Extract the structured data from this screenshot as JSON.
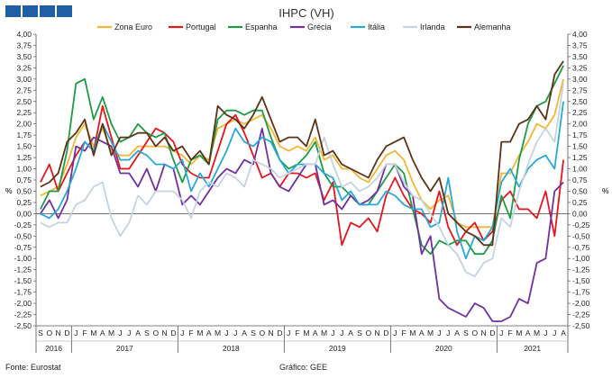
{
  "chart_data": {
    "type": "line",
    "title": "IHPC (VH)",
    "ylabel_left": "%",
    "ylabel_right": "%",
    "ylim": [
      -2.5,
      4.0
    ],
    "ytick_step": 0.25,
    "month_letters": [
      "S",
      "O",
      "N",
      "D",
      "J",
      "F",
      "M",
      "A",
      "M",
      "J",
      "J",
      "A",
      "S",
      "O",
      "N",
      "D",
      "J",
      "F",
      "M",
      "A",
      "M",
      "J",
      "J",
      "A",
      "S",
      "O",
      "N",
      "D",
      "J",
      "F",
      "M",
      "A",
      "M",
      "J",
      "J",
      "A",
      "S",
      "O",
      "N",
      "D",
      "J",
      "F",
      "M",
      "A",
      "M",
      "J",
      "J",
      "A",
      "S",
      "O",
      "N",
      "D",
      "J",
      "F",
      "M",
      "A",
      "M",
      "J",
      "J",
      "A"
    ],
    "year_groups": [
      {
        "label": "2016",
        "count": 4
      },
      {
        "label": "2017",
        "count": 12
      },
      {
        "label": "2018",
        "count": 12
      },
      {
        "label": "2019",
        "count": 12
      },
      {
        "label": "2020",
        "count": 12
      },
      {
        "label": "2021",
        "count": 8
      }
    ],
    "series": [
      {
        "name": "Zona Euro",
        "color": "#f2b632",
        "values": [
          0.4,
          0.5,
          0.6,
          1.1,
          1.7,
          2.0,
          1.5,
          1.9,
          1.4,
          1.3,
          1.3,
          1.5,
          1.5,
          1.5,
          1.5,
          1.4,
          1.3,
          1.1,
          1.3,
          1.2,
          1.9,
          2.0,
          2.1,
          2.0,
          2.1,
          2.2,
          1.9,
          1.5,
          1.4,
          1.5,
          1.4,
          1.7,
          1.2,
          1.3,
          1.0,
          1.0,
          0.8,
          0.7,
          1.0,
          1.3,
          1.4,
          1.2,
          0.7,
          0.3,
          0.1,
          0.3,
          0.4,
          -0.2,
          -0.3,
          -0.3,
          -0.3,
          -0.3,
          0.9,
          0.9,
          1.3,
          1.6,
          2.0,
          1.9,
          2.2,
          3.0
        ]
      },
      {
        "name": "Portugal",
        "color": "#e8141b",
        "values": [
          0.7,
          1.1,
          0.5,
          0.9,
          1.3,
          1.6,
          1.4,
          2.4,
          1.7,
          1.0,
          1.0,
          1.3,
          1.6,
          1.9,
          1.8,
          1.6,
          1.1,
          0.9,
          0.8,
          0.8,
          1.4,
          2.0,
          2.2,
          1.8,
          1.3,
          0.8,
          0.9,
          0.6,
          0.9,
          0.9,
          0.8,
          0.9,
          0.3,
          0.7,
          -0.7,
          -0.2,
          -0.3,
          -0.1,
          -0.4,
          0.4,
          0.8,
          0.4,
          0.1,
          0.0,
          -0.2,
          0.5,
          -0.3,
          -0.7,
          -0.4,
          -0.2,
          -0.6,
          -0.4,
          0.3,
          0.5,
          0.1,
          0.1,
          -0.1,
          0.5,
          -0.5,
          1.2
        ]
      },
      {
        "name": "Espanha",
        "color": "#1e9b47",
        "values": [
          0.1,
          0.5,
          0.5,
          1.4,
          2.9,
          3.0,
          2.1,
          2.6,
          2.0,
          1.6,
          1.7,
          2.0,
          1.8,
          1.7,
          1.8,
          1.2,
          0.7,
          1.2,
          1.3,
          1.1,
          2.1,
          2.3,
          2.3,
          2.2,
          2.3,
          2.3,
          1.7,
          1.2,
          1.0,
          1.1,
          1.3,
          1.6,
          0.9,
          0.6,
          0.6,
          0.4,
          0.2,
          0.2,
          0.5,
          0.8,
          1.1,
          0.9,
          0.1,
          -0.7,
          -0.9,
          -0.6,
          -0.7,
          -0.6,
          -0.6,
          -0.9,
          -0.9,
          -0.6,
          0.4,
          -0.1,
          1.2,
          2.0,
          2.4,
          2.5,
          2.9,
          3.3
        ]
      },
      {
        "name": "Grécia",
        "color": "#7030a0",
        "values": [
          0.0,
          0.3,
          -0.1,
          0.3,
          1.5,
          1.4,
          1.7,
          1.6,
          1.5,
          0.9,
          0.9,
          0.6,
          1.0,
          0.5,
          1.1,
          1.0,
          0.2,
          0.4,
          0.2,
          0.5,
          0.8,
          1.0,
          0.9,
          1.2,
          1.1,
          1.9,
          0.9,
          0.6,
          0.5,
          0.8,
          1.1,
          1.1,
          0.2,
          0.3,
          0.1,
          0.4,
          0.2,
          0.3,
          0.5,
          1.1,
          1.1,
          0.6,
          0.4,
          -0.9,
          -0.5,
          -1.9,
          -2.1,
          -2.2,
          -2.3,
          -2.0,
          -2.1,
          -2.4,
          -2.4,
          -2.3,
          -1.9,
          -2.0,
          -1.1,
          -1.0,
          0.5,
          0.7
        ]
      },
      {
        "name": "Itália",
        "color": "#29a8d8",
        "values": [
          0.0,
          -0.1,
          0.1,
          0.5,
          1.0,
          1.6,
          1.4,
          2.0,
          1.6,
          1.2,
          1.2,
          1.4,
          1.3,
          1.1,
          1.1,
          1.0,
          1.2,
          0.5,
          0.9,
          0.6,
          1.0,
          1.4,
          1.9,
          1.6,
          1.5,
          1.7,
          1.6,
          1.2,
          0.9,
          1.1,
          1.1,
          1.1,
          0.9,
          0.8,
          0.3,
          0.5,
          0.2,
          0.2,
          0.2,
          0.5,
          0.4,
          0.2,
          0.1,
          0.1,
          -0.3,
          -0.2,
          0.8,
          -0.4,
          -1.0,
          -0.5,
          -0.6,
          -0.3,
          0.7,
          1.0,
          0.6,
          1.0,
          1.2,
          1.3,
          1.0,
          2.5
        ]
      },
      {
        "name": "Irlanda",
        "color": "#c5d3e0",
        "values": [
          -0.2,
          -0.3,
          -0.2,
          -0.2,
          0.2,
          0.3,
          0.6,
          0.7,
          -0.1,
          -0.5,
          -0.2,
          0.4,
          0.2,
          0.5,
          0.5,
          0.5,
          0.3,
          -0.1,
          0.5,
          0.7,
          0.6,
          0.9,
          0.8,
          0.6,
          1.2,
          1.1,
          1.0,
          0.8,
          0.9,
          1.0,
          1.1,
          1.1,
          1.7,
          1.1,
          0.6,
          0.7,
          0.5,
          0.6,
          0.8,
          1.1,
          1.1,
          0.7,
          0.4,
          0.3,
          0.0,
          -0.3,
          -0.7,
          -0.9,
          -1.3,
          -1.4,
          -1.1,
          -1.0,
          -0.1,
          -0.3,
          0.5,
          1.1,
          1.6,
          1.9,
          1.6,
          2.9
        ]
      },
      {
        "name": "Alemanha",
        "color": "#5c3317",
        "values": [
          0.6,
          0.7,
          0.9,
          1.6,
          1.8,
          2.1,
          1.3,
          2.0,
          1.3,
          1.7,
          1.7,
          1.8,
          1.8,
          1.5,
          1.7,
          1.4,
          1.5,
          1.2,
          1.4,
          1.1,
          2.4,
          2.2,
          2.1,
          1.9,
          2.2,
          2.6,
          2.1,
          1.6,
          1.7,
          1.7,
          1.5,
          2.1,
          1.3,
          1.4,
          1.1,
          1.0,
          0.9,
          0.8,
          1.2,
          1.5,
          1.6,
          1.7,
          1.2,
          0.8,
          0.5,
          0.8,
          0.0,
          -0.2,
          -0.4,
          -0.5,
          -0.7,
          -0.7,
          1.6,
          1.6,
          2.0,
          2.1,
          2.4,
          2.1,
          3.1,
          3.4
        ]
      }
    ]
  },
  "footer": {
    "source": "Fonte: Eurostat",
    "credit": "Gráfico: GEE"
  }
}
